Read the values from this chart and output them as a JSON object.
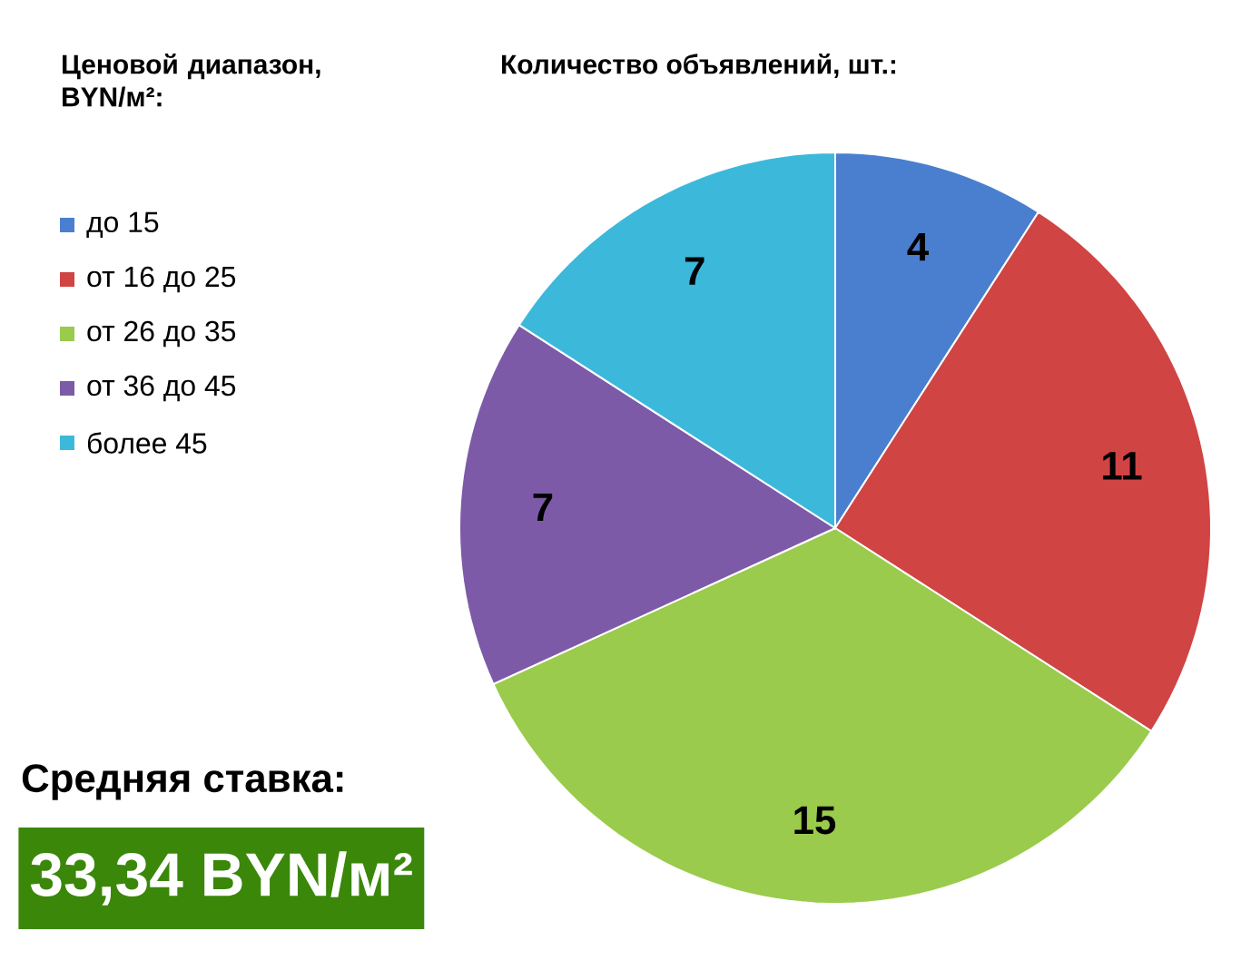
{
  "chart_data": {
    "type": "pie",
    "title": "Количество объявлений, шт.:",
    "legend_title": "Ценовой диапазон, BYN/м²:",
    "categories": [
      "до 15",
      "от 16 до 25",
      "от 26 до 35",
      "от 36 до 45",
      "более 45"
    ],
    "values": [
      4,
      11,
      15,
      7,
      7
    ],
    "colors": [
      "#4a7fd0",
      "#d04444",
      "#9acb4c",
      "#7d5aa8",
      "#3cb9da"
    ],
    "data_labels": true,
    "legend": "top left",
    "annotations": [
      "Средняя ставка:",
      "33,34 BYN/м²"
    ]
  }
}
